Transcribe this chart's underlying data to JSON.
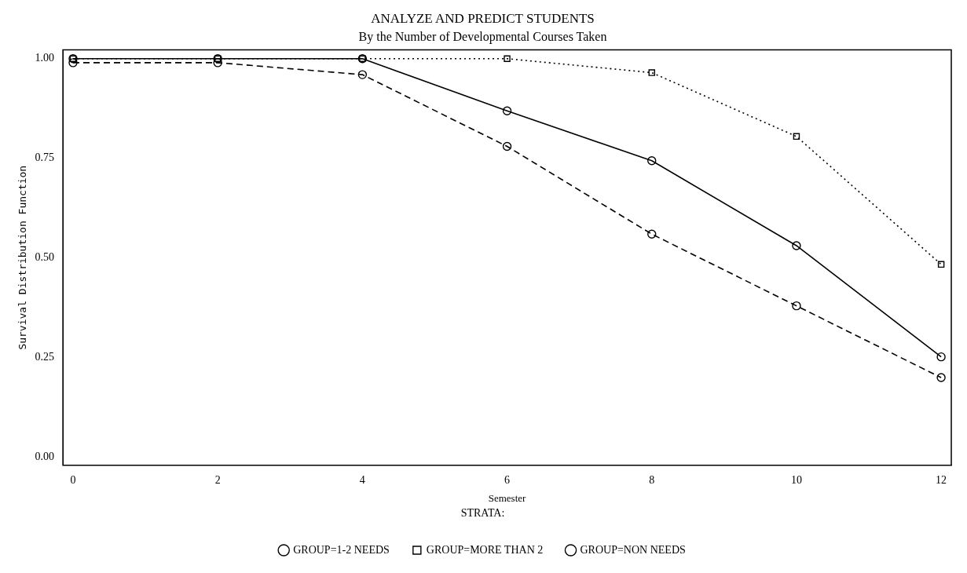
{
  "chart_data": {
    "type": "line",
    "title": "ANALYZE AND PREDICT STUDENTS",
    "subtitle": "By the Number of Developmental Courses Taken",
    "xlabel": "Semester",
    "ylabel": "Survival Distribution Function",
    "legend_title": "STRATA:",
    "legend": "bottom",
    "grid": false,
    "x": [
      0,
      2,
      4,
      6,
      8,
      10,
      12
    ],
    "xlim": [
      -0.14,
      12.14
    ],
    "xticks": [
      0,
      2,
      4,
      6,
      8,
      10,
      12
    ],
    "ylim": [
      -0.02,
      1.022
    ],
    "yticks": [
      {
        "value": 0,
        "label": "0.00"
      },
      {
        "value": 0.25,
        "label": "0.25"
      },
      {
        "value": 0.5,
        "label": "0.50"
      },
      {
        "value": 0.75,
        "label": "0.75"
      },
      {
        "value": 1,
        "label": "1.00"
      }
    ],
    "series": [
      {
        "name": "GROUP=1-2 NEEDS",
        "color": "#000000",
        "marker": "circle",
        "line_style": "solid",
        "values": [
          1.0,
          1.0,
          1.0,
          0.869,
          0.744,
          0.531,
          0.252
        ]
      },
      {
        "name": "GROUP=MORE THAN 2",
        "color": "#000000",
        "marker": "square",
        "line_style": "dotted",
        "values": [
          1.0,
          1.0,
          1.0,
          1.0,
          0.965,
          0.805,
          0.484
        ]
      },
      {
        "name": "GROUP=NON NEEDS",
        "color": "#000000",
        "marker": "circle",
        "line_style": "dashed",
        "values": [
          0.99,
          0.99,
          0.96,
          0.78,
          0.56,
          0.38,
          0.2
        ]
      }
    ]
  }
}
